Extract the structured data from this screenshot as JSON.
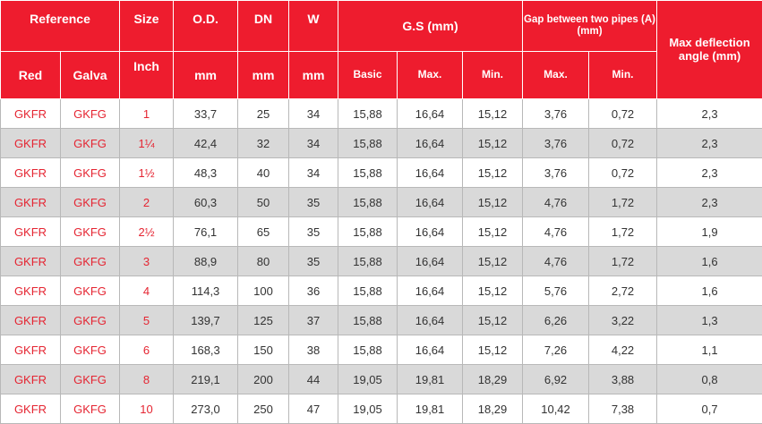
{
  "header": {
    "reference": "Reference",
    "red": "Red",
    "galva": "Galva",
    "size": "Size",
    "inch": "Inch",
    "od": "O.D.",
    "od_unit": "mm",
    "dn": "DN",
    "dn_unit": "mm",
    "w": "W",
    "w_unit": "mm",
    "gs": "G.S (mm)",
    "gs_basic": "Basic",
    "gs_max": "Max.",
    "gs_min": "Min.",
    "gap": "Gap between two pipes (A) (mm)",
    "gap_max": "Max.",
    "gap_min": "Min.",
    "maxdef": "Max deflection angle (mm)"
  },
  "rows": [
    [
      "GKFR",
      "GKFG",
      "1",
      "33,7",
      "25",
      "34",
      "15,88",
      "16,64",
      "15,12",
      "3,76",
      "0,72",
      "2,3"
    ],
    [
      "GKFR",
      "GKFG",
      "1¼",
      "42,4",
      "32",
      "34",
      "15,88",
      "16,64",
      "15,12",
      "3,76",
      "0,72",
      "2,3"
    ],
    [
      "GKFR",
      "GKFG",
      "1½",
      "48,3",
      "40",
      "34",
      "15,88",
      "16,64",
      "15,12",
      "3,76",
      "0,72",
      "2,3"
    ],
    [
      "GKFR",
      "GKFG",
      "2",
      "60,3",
      "50",
      "35",
      "15,88",
      "16,64",
      "15,12",
      "4,76",
      "1,72",
      "2,3"
    ],
    [
      "GKFR",
      "GKFG",
      "2½",
      "76,1",
      "65",
      "35",
      "15,88",
      "16,64",
      "15,12",
      "4,76",
      "1,72",
      "1,9"
    ],
    [
      "GKFR",
      "GKFG",
      "3",
      "88,9",
      "80",
      "35",
      "15,88",
      "16,64",
      "15,12",
      "4,76",
      "1,72",
      "1,6"
    ],
    [
      "GKFR",
      "GKFG",
      "4",
      "114,3",
      "100",
      "36",
      "15,88",
      "16,64",
      "15,12",
      "5,76",
      "2,72",
      "1,6"
    ],
    [
      "GKFR",
      "GKFG",
      "5",
      "139,7",
      "125",
      "37",
      "15,88",
      "16,64",
      "15,12",
      "6,26",
      "3,22",
      "1,3"
    ],
    [
      "GKFR",
      "GKFG",
      "6",
      "168,3",
      "150",
      "38",
      "15,88",
      "16,64",
      "15,12",
      "7,26",
      "4,22",
      "1,1"
    ],
    [
      "GKFR",
      "GKFG",
      "8",
      "219,1",
      "200",
      "44",
      "19,05",
      "19,81",
      "18,29",
      "6,92",
      "3,88",
      "0,8"
    ],
    [
      "GKFR",
      "GKFG",
      "10",
      "273,0",
      "250",
      "47",
      "19,05",
      "19,81",
      "18,29",
      "10,42",
      "7,38",
      "0,7"
    ]
  ],
  "colors": {
    "header_bg": "#ee1c2e",
    "header_text": "#ffffff",
    "reference_text": "#e52532",
    "odd_row_bg": "#ffffff",
    "even_row_bg": "#d9d9d9"
  }
}
